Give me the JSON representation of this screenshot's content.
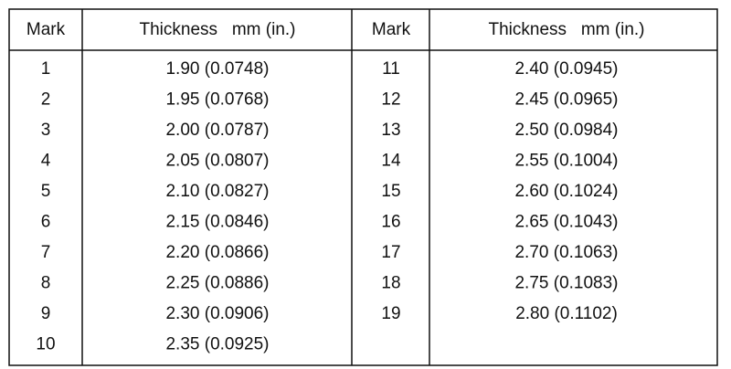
{
  "table": {
    "headers": [
      "Mark",
      "Thickness   mm (in.)",
      "Mark",
      "Thickness   mm (in.)"
    ],
    "left": [
      {
        "mark": "1",
        "thickness": "1.90 (0.0748)"
      },
      {
        "mark": "2",
        "thickness": "1.95 (0.0768)"
      },
      {
        "mark": "3",
        "thickness": "2.00 (0.0787)"
      },
      {
        "mark": "4",
        "thickness": "2.05 (0.0807)"
      },
      {
        "mark": "5",
        "thickness": "2.10 (0.0827)"
      },
      {
        "mark": "6",
        "thickness": "2.15 (0.0846)"
      },
      {
        "mark": "7",
        "thickness": "2.20 (0.0866)"
      },
      {
        "mark": "8",
        "thickness": "2.25 (0.0886)"
      },
      {
        "mark": "9",
        "thickness": "2.30 (0.0906)"
      },
      {
        "mark": "10",
        "thickness": "2.35 (0.0925)"
      }
    ],
    "right": [
      {
        "mark": "11",
        "thickness": "2.40 (0.0945)"
      },
      {
        "mark": "12",
        "thickness": "2.45 (0.0965)"
      },
      {
        "mark": "13",
        "thickness": "2.50 (0.0984)"
      },
      {
        "mark": "14",
        "thickness": "2.55 (0.1004)"
      },
      {
        "mark": "15",
        "thickness": "2.60 (0.1024)"
      },
      {
        "mark": "16",
        "thickness": "2.65 (0.1043)"
      },
      {
        "mark": "17",
        "thickness": "2.70 (0.1063)"
      },
      {
        "mark": "18",
        "thickness": "2.75 (0.1083)"
      },
      {
        "mark": "19",
        "thickness": "2.80 (0.1102)"
      }
    ]
  }
}
